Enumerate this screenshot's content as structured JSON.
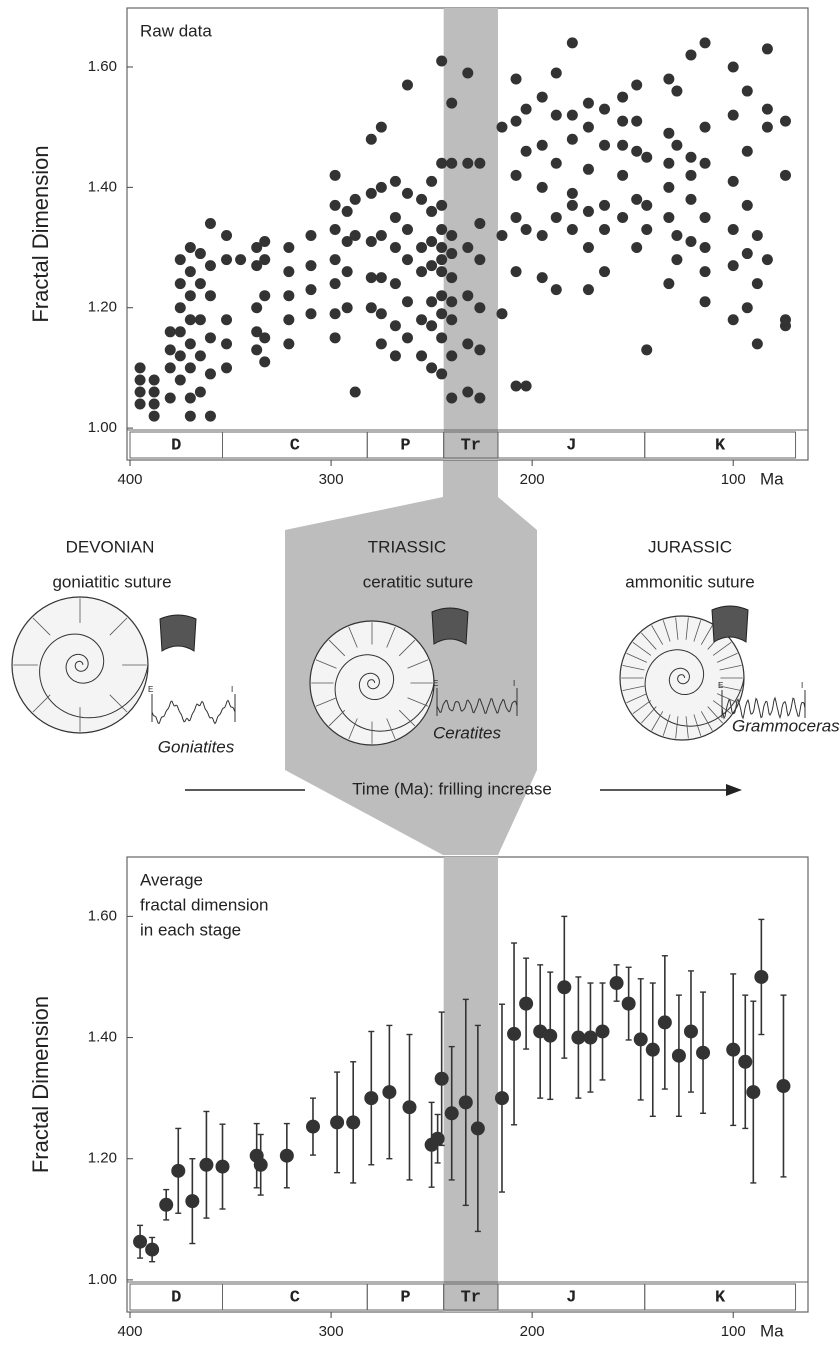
{
  "chart_data": [
    {
      "type": "scatter",
      "title": "Raw data",
      "y_label": "Fractal Dimension",
      "x_label": "Ma",
      "xlim": [
        401.5,
        62.8
      ],
      "ylim": [
        0.947,
        1.698
      ],
      "xticks": [
        400,
        300,
        200,
        100
      ],
      "yticks": [
        {
          "value": 1,
          "label": "1.00"
        },
        {
          "value": 1.2,
          "label": "1.20"
        },
        {
          "value": 1.4,
          "label": "1.40"
        },
        {
          "value": 1.6,
          "label": "1.60"
        }
      ],
      "periods": [
        {
          "label": "D",
          "from": 400,
          "to": 354
        },
        {
          "label": "C",
          "from": 354,
          "to": 282
        },
        {
          "label": "P",
          "from": 282,
          "to": 244
        },
        {
          "label": "Tr",
          "from": 244,
          "to": 217,
          "color": "#bdbdbd"
        },
        {
          "label": "J",
          "from": 217,
          "to": 144
        },
        {
          "label": "K",
          "from": 144,
          "to": 69
        }
      ],
      "color": "#333333",
      "x": [
        395,
        395,
        395,
        395,
        388,
        388,
        388,
        388,
        380,
        380,
        380,
        380,
        375,
        375,
        375,
        375,
        375,
        375,
        370,
        370,
        370,
        370,
        370,
        370,
        370,
        370,
        365,
        365,
        365,
        365,
        365,
        360,
        360,
        360,
        360,
        360,
        360,
        352,
        352,
        352,
        352,
        352,
        345,
        337,
        337,
        337,
        337,
        337,
        333,
        333,
        333,
        333,
        333,
        321,
        321,
        321,
        321,
        321,
        310,
        310,
        310,
        310,
        298,
        298,
        298,
        298,
        298,
        298,
        298,
        292,
        292,
        292,
        292,
        288,
        288,
        288,
        280,
        280,
        280,
        280,
        280,
        275,
        275,
        275,
        275,
        275,
        275,
        268,
        268,
        268,
        268,
        268,
        268,
        262,
        262,
        262,
        262,
        262,
        262,
        255,
        255,
        255,
        255,
        255,
        250,
        250,
        250,
        250,
        250,
        250,
        250,
        245,
        245,
        245,
        245,
        245,
        245,
        245,
        245,
        245,
        245,
        245,
        240,
        240,
        240,
        240,
        240,
        240,
        240,
        240,
        240,
        232,
        232,
        232,
        232,
        232,
        232,
        226,
        226,
        226,
        226,
        226,
        226,
        215,
        215,
        215,
        208,
        208,
        208,
        208,
        208,
        208,
        203,
        203,
        203,
        203,
        195,
        195,
        195,
        195,
        195,
        188,
        188,
        188,
        188,
        188,
        180,
        180,
        180,
        180,
        180,
        180,
        172,
        172,
        172,
        172,
        172,
        172,
        164,
        164,
        164,
        164,
        164,
        155,
        155,
        155,
        155,
        155,
        148,
        148,
        148,
        148,
        148,
        143,
        143,
        143,
        143,
        132,
        132,
        132,
        132,
        132,
        132,
        128,
        128,
        128,
        128,
        121,
        121,
        121,
        121,
        121,
        114,
        114,
        114,
        114,
        114,
        114,
        114,
        100,
        100,
        100,
        100,
        100,
        100,
        93,
        93,
        93,
        93,
        93,
        88,
        88,
        88,
        83,
        83,
        83,
        83,
        74,
        74,
        74,
        74
      ],
      "values": [
        1.04,
        1.06,
        1.08,
        1.1,
        1.02,
        1.04,
        1.06,
        1.08,
        1.05,
        1.1,
        1.13,
        1.16,
        1.08,
        1.12,
        1.16,
        1.2,
        1.24,
        1.28,
        1.02,
        1.05,
        1.1,
        1.14,
        1.18,
        1.22,
        1.26,
        1.3,
        1.06,
        1.12,
        1.18,
        1.24,
        1.29,
        1.02,
        1.09,
        1.15,
        1.22,
        1.27,
        1.34,
        1.1,
        1.14,
        1.18,
        1.28,
        1.32,
        1.28,
        1.13,
        1.16,
        1.2,
        1.27,
        1.3,
        1.11,
        1.15,
        1.22,
        1.28,
        1.31,
        1.14,
        1.18,
        1.22,
        1.26,
        1.3,
        1.19,
        1.23,
        1.27,
        1.32,
        1.15,
        1.19,
        1.24,
        1.28,
        1.33,
        1.37,
        1.42,
        1.2,
        1.26,
        1.31,
        1.36,
        1.06,
        1.32,
        1.38,
        1.2,
        1.25,
        1.31,
        1.39,
        1.48,
        1.14,
        1.19,
        1.25,
        1.32,
        1.4,
        1.5,
        1.12,
        1.17,
        1.24,
        1.3,
        1.35,
        1.41,
        1.15,
        1.21,
        1.28,
        1.33,
        1.39,
        1.57,
        1.12,
        1.18,
        1.26,
        1.3,
        1.38,
        1.1,
        1.17,
        1.21,
        1.27,
        1.31,
        1.36,
        1.41,
        1.09,
        1.15,
        1.19,
        1.22,
        1.26,
        1.28,
        1.3,
        1.33,
        1.37,
        1.44,
        1.61,
        1.05,
        1.12,
        1.18,
        1.21,
        1.25,
        1.29,
        1.32,
        1.44,
        1.54,
        1.06,
        1.14,
        1.22,
        1.3,
        1.44,
        1.59,
        1.05,
        1.13,
        1.2,
        1.28,
        1.34,
        1.44,
        1.19,
        1.32,
        1.5,
        1.07,
        1.26,
        1.35,
        1.42,
        1.51,
        1.58,
        1.07,
        1.33,
        1.46,
        1.53,
        1.25,
        1.32,
        1.4,
        1.47,
        1.55,
        1.23,
        1.35,
        1.44,
        1.52,
        1.59,
        1.33,
        1.37,
        1.39,
        1.48,
        1.52,
        1.64,
        1.23,
        1.3,
        1.36,
        1.43,
        1.5,
        1.54,
        1.26,
        1.33,
        1.37,
        1.47,
        1.53,
        1.35,
        1.42,
        1.47,
        1.51,
        1.55,
        1.3,
        1.38,
        1.46,
        1.51,
        1.57,
        1.13,
        1.33,
        1.37,
        1.45,
        1.24,
        1.35,
        1.4,
        1.44,
        1.49,
        1.58,
        1.28,
        1.32,
        1.47,
        1.56,
        1.31,
        1.38,
        1.42,
        1.45,
        1.62,
        1.21,
        1.26,
        1.3,
        1.35,
        1.44,
        1.5,
        1.64,
        1.18,
        1.27,
        1.33,
        1.41,
        1.52,
        1.6,
        1.2,
        1.29,
        1.37,
        1.46,
        1.56,
        1.14,
        1.24,
        1.32,
        1.28,
        1.5,
        1.53,
        1.63,
        1.17,
        1.18,
        1.42,
        1.51
      ]
    },
    {
      "type": "errorbar",
      "title": [
        "Average",
        "fractal dimension",
        "in each stage"
      ],
      "y_label": "Fractal Dimension",
      "x_label": "Ma",
      "xlim": [
        401.5,
        62.8
      ],
      "ylim": [
        0.947,
        1.698
      ],
      "xticks": [
        400,
        300,
        200,
        100
      ],
      "yticks": [
        {
          "value": 1,
          "label": "1.00"
        },
        {
          "value": 1.2,
          "label": "1.20"
        },
        {
          "value": 1.4,
          "label": "1.40"
        },
        {
          "value": 1.6,
          "label": "1.60"
        }
      ],
      "periods": [
        {
          "label": "D",
          "from": 400,
          "to": 354
        },
        {
          "label": "C",
          "from": 354,
          "to": 282
        },
        {
          "label": "P",
          "from": 282,
          "to": 244
        },
        {
          "label": "Tr",
          "from": 244,
          "to": 217,
          "color": "#bdbdbd"
        },
        {
          "label": "J",
          "from": 217,
          "to": 144
        },
        {
          "label": "K",
          "from": 144,
          "to": 69
        }
      ],
      "color": "#333333",
      "x": [
        395,
        389,
        382,
        376,
        369,
        362,
        354,
        337,
        335,
        322,
        309,
        297,
        289,
        280,
        271,
        261,
        250,
        247,
        245,
        240,
        233,
        227,
        215,
        209,
        203,
        196,
        191,
        184,
        177,
        171,
        165,
        158,
        152,
        146,
        140,
        134,
        127,
        121,
        115,
        100,
        94,
        90,
        86,
        75
      ],
      "values": [
        1.063,
        1.05,
        1.124,
        1.18,
        1.13,
        1.19,
        1.187,
        1.205,
        1.19,
        1.205,
        1.253,
        1.26,
        1.26,
        1.3,
        1.31,
        1.285,
        1.223,
        1.233,
        1.332,
        1.275,
        1.293,
        1.25,
        1.3,
        1.406,
        1.456,
        1.41,
        1.403,
        1.483,
        1.4,
        1.4,
        1.41,
        1.49,
        1.456,
        1.397,
        1.38,
        1.425,
        1.37,
        1.41,
        1.375,
        1.38,
        1.36,
        1.31,
        1.5,
        1.32
      ],
      "errors": [
        0.027,
        0.02,
        0.025,
        0.07,
        0.07,
        0.088,
        0.07,
        0.053,
        0.05,
        0.053,
        0.047,
        0.083,
        0.1,
        0.11,
        0.11,
        0.12,
        0.07,
        0.04,
        0.11,
        0.11,
        0.17,
        0.17,
        0.155,
        0.15,
        0.075,
        0.11,
        0.105,
        0.117,
        0.1,
        0.09,
        0.08,
        0.03,
        0.06,
        0.1,
        0.11,
        0.11,
        0.1,
        0.1,
        0.1,
        0.125,
        0.11,
        0.15,
        0.095,
        0.15
      ]
    }
  ],
  "illustration": {
    "panels": [
      {
        "period": "DEVONIAN",
        "suture": "goniatitic suture",
        "genus": "Goniatites"
      },
      {
        "period": "TRIASSIC",
        "suture": "ceratitic suture",
        "genus": "Ceratites"
      },
      {
        "period": "JURASSIC",
        "suture": "ammonitic suture",
        "genus": "Grammoceras"
      }
    ],
    "suture_ends": [
      "E",
      "I"
    ],
    "arrow_label": "Time (Ma): frilling increase"
  }
}
